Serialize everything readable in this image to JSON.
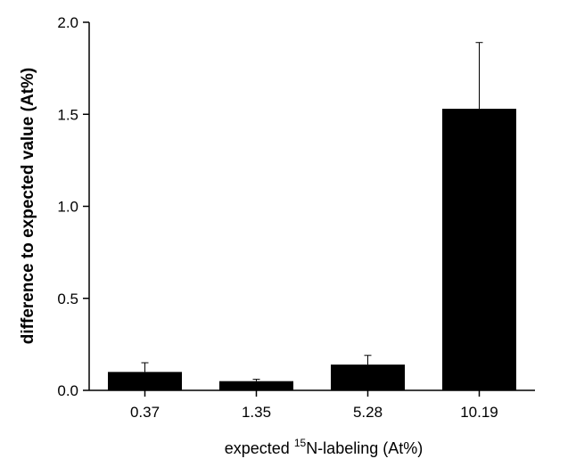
{
  "chart_data": {
    "type": "bar",
    "categories": [
      "0.37",
      "1.35",
      "5.28",
      "10.19"
    ],
    "values": [
      0.1,
      0.05,
      0.14,
      1.53
    ],
    "errors": [
      0.05,
      0.01,
      0.05,
      0.36
    ],
    "ylim": [
      0,
      2.0
    ],
    "yticks": [
      "0.0",
      "0.5",
      "1.0",
      "1.5",
      "2.0"
    ],
    "ytick_values": [
      0,
      0.5,
      1.0,
      1.5,
      2.0
    ],
    "ylabel": "difference to expected value (At%)",
    "xlabel": {
      "prefix": "expected ",
      "superscript": "15",
      "suffix": "N-labeling (At%)"
    },
    "grid": false,
    "bar_color": "#000000"
  }
}
